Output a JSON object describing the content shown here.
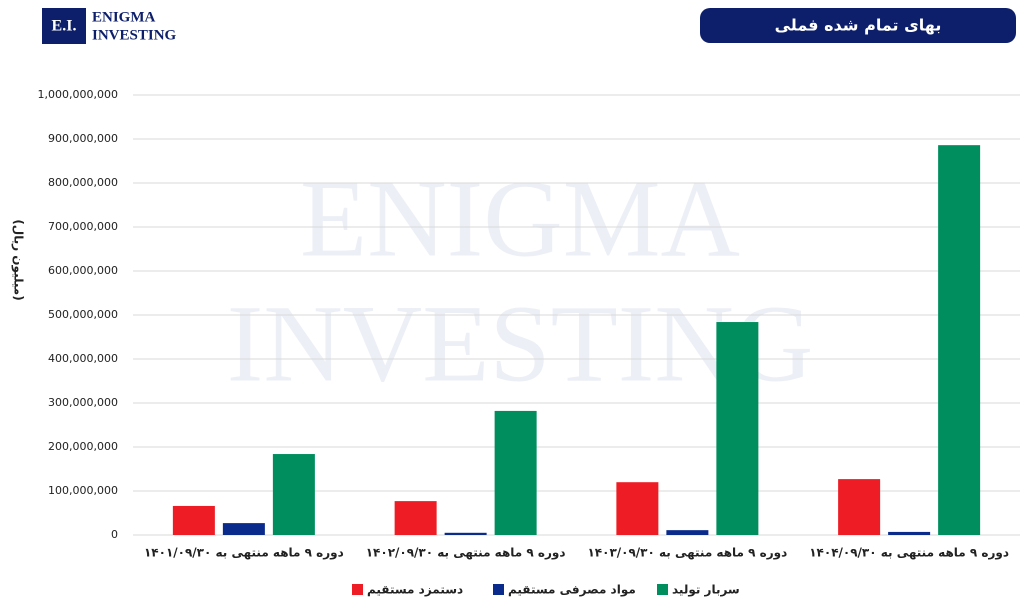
{
  "logo": {
    "mark": "E.I.",
    "line1": "ENIGMA",
    "line2": "INVESTING"
  },
  "chart_data": {
    "type": "bar",
    "title": "بهای تمام شده فملی",
    "y_label": "(میلیون ریال)",
    "categories": [
      "دوره ۹ ماهه منتهی به ۱۴۰۱/۰۹/۳۰",
      "دوره ۹ ماهه منتهی به ۱۴۰۲/۰۹/۳۰",
      "دوره ۹ ماهه منتهی به ۱۴۰۳/۰۹/۳۰",
      "دوره ۹ ماهه منتهی به ۱۴۰۴/۰۹/۳۰"
    ],
    "series": [
      {
        "name": "دستمزد مستقیم",
        "color": "#ee1c25",
        "values": [
          66000000,
          77000000,
          120000000,
          127000000
        ]
      },
      {
        "name": "مواد مصرفی مستقیم",
        "color": "#0a2a8c",
        "values": [
          27000000,
          5000000,
          11000000,
          7000000
        ]
      },
      {
        "name": "سربار تولید",
        "color": "#008e5f",
        "values": [
          184000000,
          282000000,
          484000000,
          886000000
        ]
      }
    ],
    "ylim": [
      0,
      1000000000
    ],
    "yticks": [
      0,
      {
        "value": 100000000,
        "label": "100,000,000"
      },
      {
        "value": 200000000,
        "label": "200,000,000"
      },
      {
        "value": 300000000,
        "label": "300,000,000"
      },
      {
        "value": 400000000,
        "label": "400,000,000"
      },
      {
        "value": 500000000,
        "label": "500,000,000"
      },
      {
        "value": 600000000,
        "label": "600,000,000"
      },
      {
        "value": 700000000,
        "label": "700,000,000"
      },
      {
        "value": 800000000,
        "label": "800,000,000"
      },
      {
        "value": 900000000,
        "label": "900,000,000"
      },
      {
        "value": 1000000000,
        "label": "1,000,000,000"
      }
    ],
    "grid": true
  }
}
